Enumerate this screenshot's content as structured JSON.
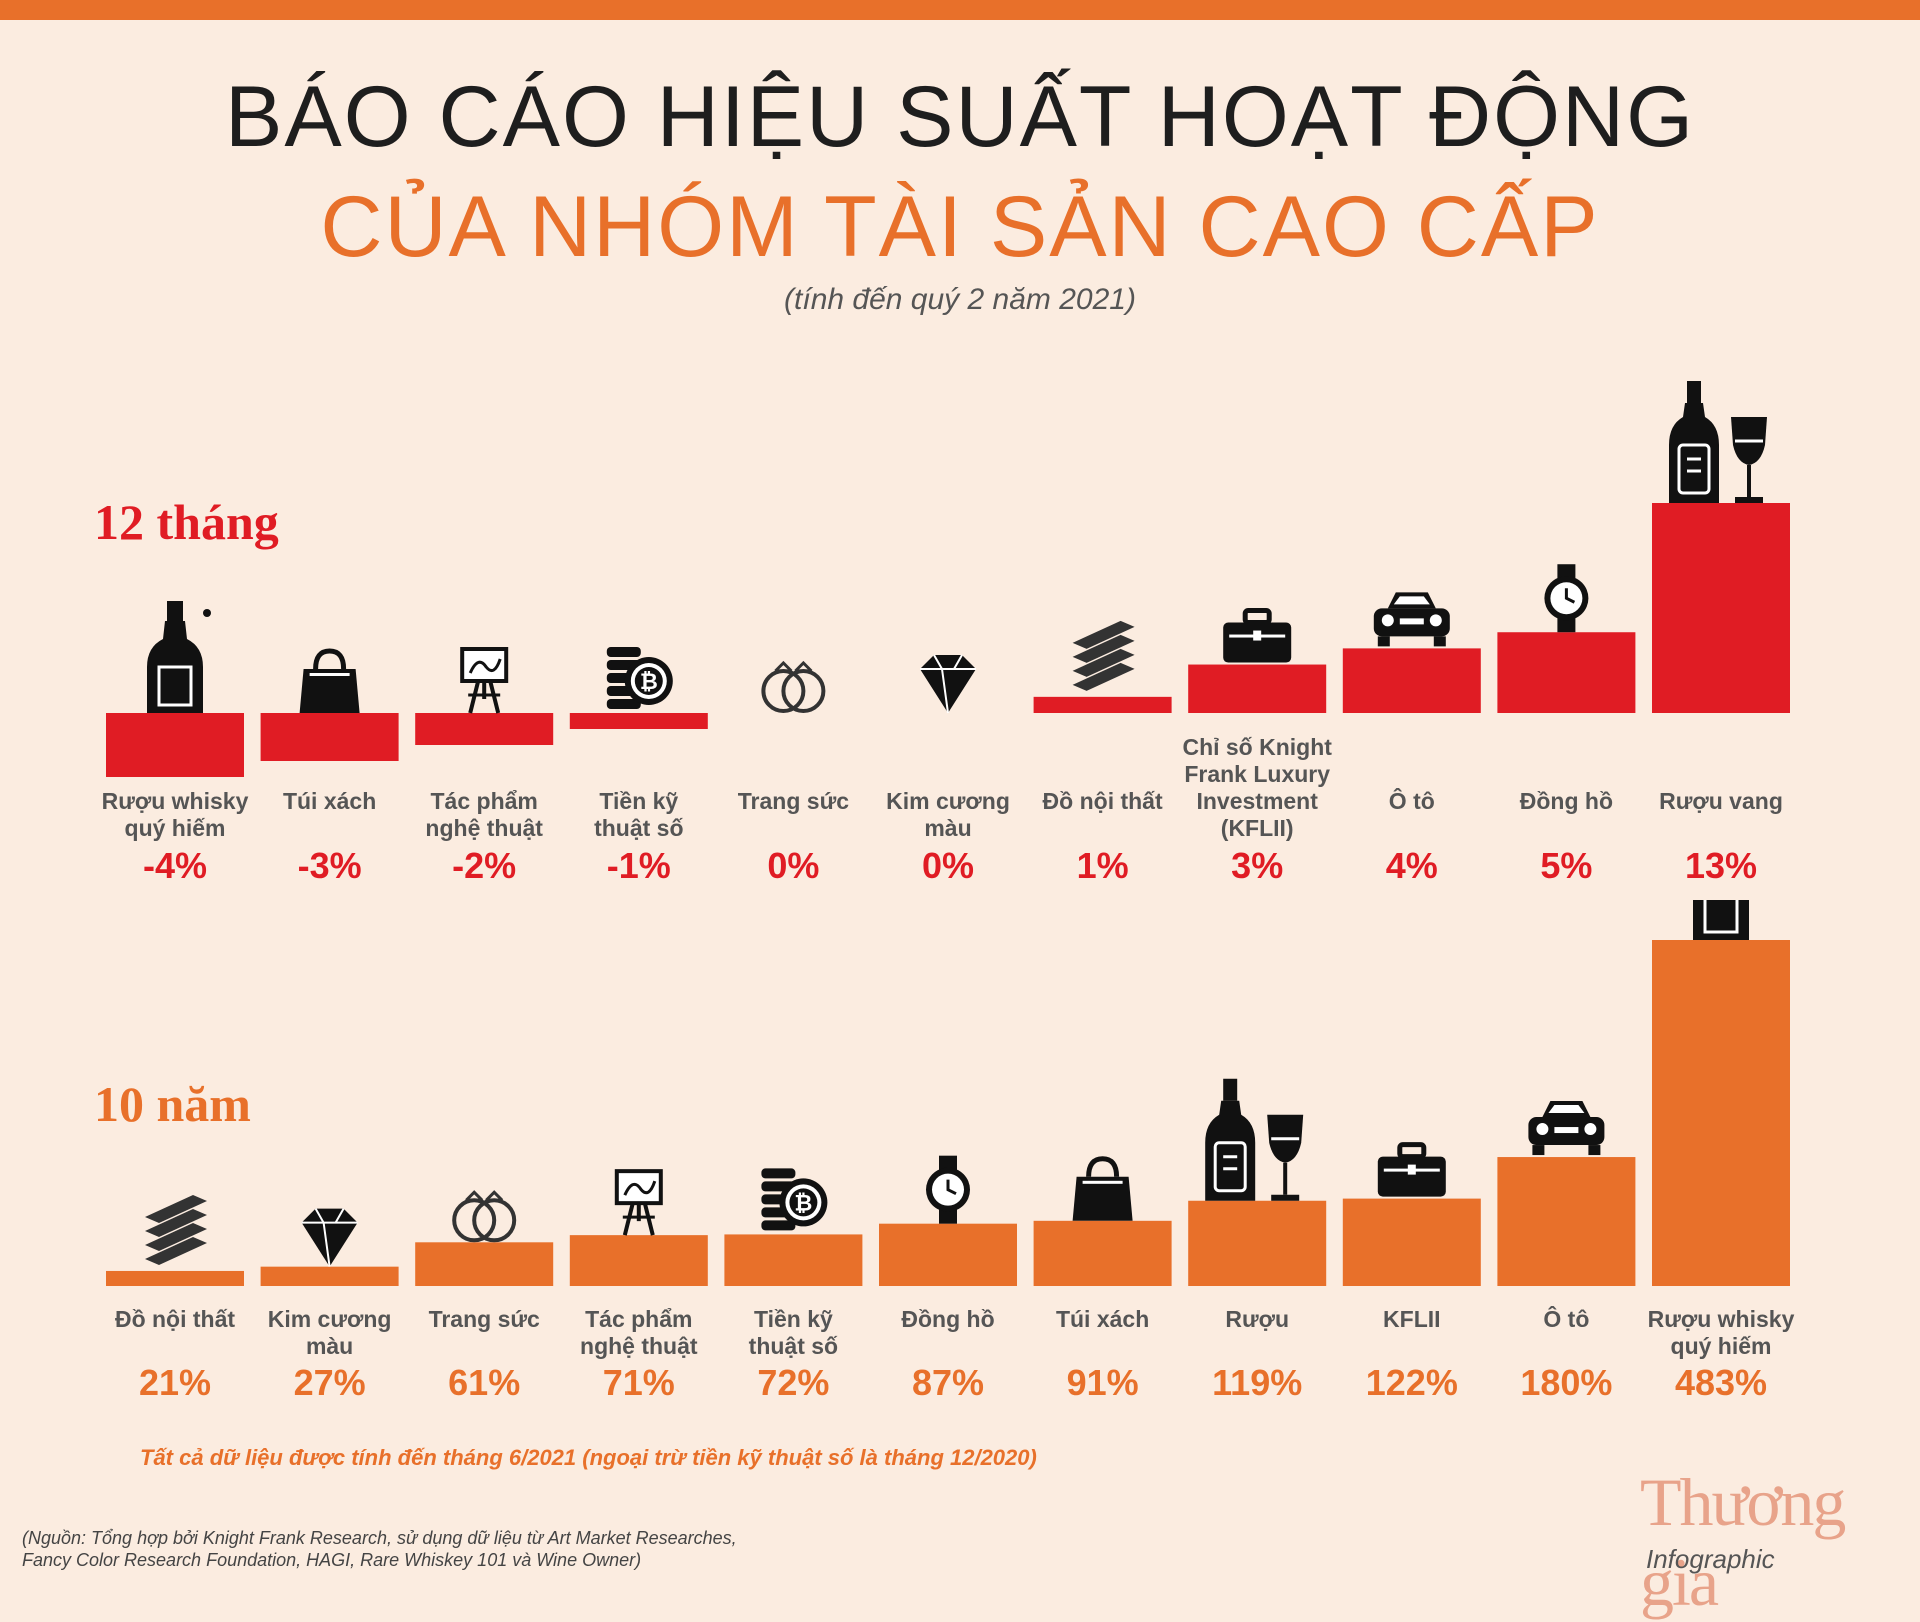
{
  "header": {
    "title_line1": "BÁO CÁO HIỆU SUẤT HOẠT ĐỘNG",
    "title_line2": "CỦA NHÓM TÀI SẢN CAO CẤP",
    "subtitle": "(tính đến quý 2 năm 2021)"
  },
  "colors": {
    "red": "#e01c24",
    "orange": "#e8702a",
    "background": "#fbece0"
  },
  "chart_data": [
    {
      "type": "bar",
      "title": "12 tháng",
      "categories": [
        [
          "Rượu whisky",
          "quý hiếm"
        ],
        [
          "Túi xách"
        ],
        [
          "Tác phẩm",
          "nghệ thuật"
        ],
        [
          "Tiền kỹ",
          "thuật số"
        ],
        [
          "Trang sức"
        ],
        [
          "Kim cương",
          "màu"
        ],
        [
          "Đồ nội thất"
        ],
        [
          "Chỉ số Knight",
          "Frank Luxury",
          "Investment",
          "(KFLII)"
        ],
        [
          "Ô tô"
        ],
        [
          "Đồng hồ"
        ],
        [
          "Rượu vang"
        ]
      ],
      "values": [
        -4,
        -3,
        -2,
        -1,
        0,
        0,
        1,
        3,
        4,
        5,
        13
      ],
      "value_labels": [
        "-4%",
        "-3%",
        "-2%",
        "-1%",
        "0%",
        "0%",
        "1%",
        "3%",
        "4%",
        "5%",
        "13%"
      ],
      "icons": [
        "whisky-bottle",
        "handbag",
        "easel",
        "bitcoin-coins",
        "rings",
        "diamond",
        "furniture-slabs",
        "briefcase",
        "car",
        "watch",
        "wine-bottle-glass"
      ],
      "color": "#e01c24"
    },
    {
      "type": "bar",
      "title": "10 năm",
      "categories": [
        [
          "Đồ nội thất"
        ],
        [
          "Kim cương",
          "màu"
        ],
        [
          "Trang sức"
        ],
        [
          "Tác phẩm",
          "nghệ thuật"
        ],
        [
          "Tiền kỹ",
          "thuật số"
        ],
        [
          "Đồng hồ"
        ],
        [
          "Túi xách"
        ],
        [
          "Rượu"
        ],
        [
          "KFLII"
        ],
        [
          "Ô tô"
        ],
        [
          "Rượu whisky",
          "quý hiếm"
        ]
      ],
      "values": [
        21,
        27,
        61,
        71,
        72,
        87,
        91,
        119,
        122,
        180,
        483
      ],
      "value_labels": [
        "21%",
        "27%",
        "61%",
        "71%",
        "72%",
        "87%",
        "91%",
        "119%",
        "122%",
        "180%",
        "483%"
      ],
      "icons": [
        "furniture-slabs",
        "diamond",
        "rings",
        "easel",
        "bitcoin-coins",
        "watch",
        "handbag",
        "wine-bottle-glass",
        "briefcase",
        "car",
        "whisky-bottle"
      ],
      "color": "#e8702a"
    }
  ],
  "footnote": "Tất cả dữ liệu được tính đến tháng 6/2021 (ngoại trừ tiền kỹ thuật số là tháng 12/2020)",
  "source": [
    "(Nguồn: Tổng hợp bởi Knight Frank Research, sử dụng dữ liệu từ Art Market Researches,",
    "Fancy Color Research Foundation, HAGI, Rare Whiskey 101 và Wine Owner)"
  ],
  "brand": {
    "name": "Thương gia",
    "sub": "Infographic"
  }
}
